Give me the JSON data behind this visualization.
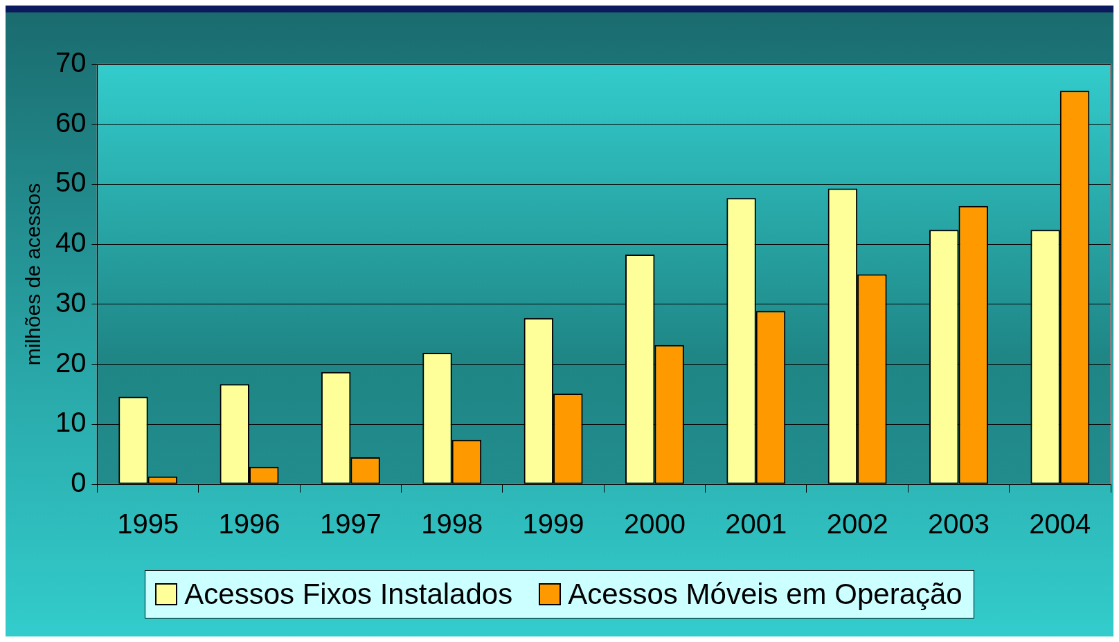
{
  "chart_data": {
    "type": "bar",
    "ylabel": "milhões de acessos",
    "categories": [
      "1995",
      "1996",
      "1997",
      "1998",
      "1999",
      "2000",
      "2001",
      "2002",
      "2003",
      "2004"
    ],
    "series": [
      {
        "name": "Acessos Fixos Instalados",
        "color": "#ffff99",
        "values": [
          14.6,
          16.7,
          18.7,
          21.9,
          27.7,
          38.3,
          47.7,
          49.3,
          42.4,
          42.4
        ]
      },
      {
        "name": "Acessos Móveis em Operação",
        "color": "#ff9900",
        "values": [
          1.3,
          2.9,
          4.5,
          7.4,
          15.1,
          23.2,
          28.9,
          35.0,
          46.4,
          65.6
        ]
      }
    ],
    "ylim": [
      0,
      70
    ],
    "yticks": [
      0,
      10,
      20,
      30,
      40,
      50,
      60,
      70
    ],
    "grid": "y",
    "legend": "bottom"
  }
}
